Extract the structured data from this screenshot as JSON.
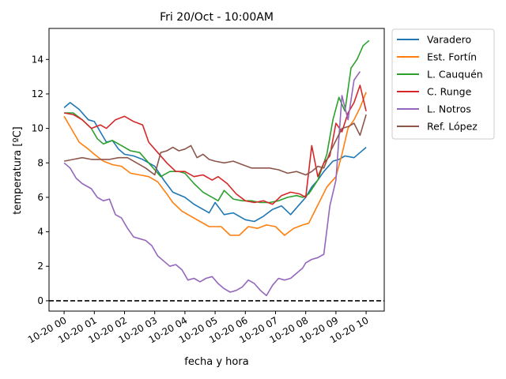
{
  "chart_data": {
    "type": "line",
    "title": "Fri 20/Oct - 10:00AM",
    "xlabel": "fecha y hora",
    "ylabel": "temperatura [ºC]",
    "xlim": [
      -0.5,
      10.6
    ],
    "ylim": [
      -0.6,
      15.8
    ],
    "x_ticks": [
      0,
      1,
      2,
      3,
      4,
      5,
      6,
      7,
      8,
      9,
      10
    ],
    "x_tick_labels": [
      "10-20 00",
      "10-20 01",
      "10-20 02",
      "10-20 03",
      "10-20 04",
      "10-20 05",
      "10-20 06",
      "10-20 07",
      "10-20 08",
      "10-20 09",
      "10-20 10"
    ],
    "y_ticks": [
      0,
      2,
      4,
      6,
      8,
      10,
      12,
      14
    ],
    "y_tick_labels": [
      "0",
      "2",
      "4",
      "6",
      "8",
      "10",
      "12",
      "14"
    ],
    "reference_line": {
      "y": 0,
      "style": "dashed",
      "color": "#000000"
    },
    "legend_position": "outside-right-top",
    "grid": false,
    "series": [
      {
        "name": "Varadero",
        "color": "#1f77b4",
        "x": [
          0,
          0.2,
          0.5,
          0.8,
          1.0,
          1.2,
          1.4,
          1.6,
          1.8,
          2.0,
          2.3,
          2.6,
          3.0,
          3.3,
          3.6,
          4.0,
          4.3,
          4.6,
          4.8,
          5.0,
          5.3,
          5.6,
          6.0,
          6.3,
          6.6,
          6.9,
          7.2,
          7.5,
          7.8,
          8.0,
          8.2,
          8.4,
          8.6,
          8.9,
          9.1,
          9.3,
          9.6,
          9.8,
          10.0
        ],
        "y": [
          11.2,
          11.5,
          11.1,
          10.5,
          10.4,
          9.8,
          9.2,
          9.3,
          8.8,
          8.5,
          8.4,
          8.2,
          7.8,
          7.0,
          6.3,
          6.0,
          5.6,
          5.3,
          5.1,
          5.7,
          5.0,
          5.1,
          4.7,
          4.6,
          4.9,
          5.3,
          5.5,
          5.0,
          5.6,
          6.0,
          6.6,
          7.0,
          7.5,
          8.1,
          8.2,
          8.4,
          8.3,
          8.6,
          8.9
        ]
      },
      {
        "name": "Est. Fortín",
        "color": "#ff7f0e",
        "x": [
          0,
          0.2,
          0.5,
          0.8,
          1.0,
          1.3,
          1.6,
          1.9,
          2.2,
          2.5,
          2.8,
          3.1,
          3.4,
          3.6,
          3.9,
          4.2,
          4.5,
          4.8,
          5.0,
          5.2,
          5.5,
          5.8,
          6.1,
          6.4,
          6.7,
          7.0,
          7.3,
          7.6,
          7.9,
          8.1,
          8.3,
          8.5,
          8.7,
          9.0,
          9.2,
          9.4,
          9.6,
          9.8,
          10.0
        ],
        "y": [
          10.7,
          10.1,
          9.2,
          8.8,
          8.5,
          8.1,
          7.9,
          7.8,
          7.4,
          7.3,
          7.2,
          6.9,
          6.2,
          5.7,
          5.2,
          4.9,
          4.6,
          4.3,
          4.3,
          4.3,
          3.8,
          3.8,
          4.3,
          4.2,
          4.4,
          4.3,
          3.8,
          4.2,
          4.4,
          4.5,
          5.2,
          5.9,
          6.6,
          7.2,
          8.5,
          10.0,
          10.5,
          11.2,
          12.1
        ]
      },
      {
        "name": "L. Cauquén",
        "color": "#2ca02c",
        "x": [
          0,
          0.3,
          0.6,
          0.9,
          1.1,
          1.3,
          1.6,
          1.9,
          2.2,
          2.5,
          2.8,
          3.0,
          3.2,
          3.5,
          3.8,
          4.0,
          4.3,
          4.6,
          4.9,
          5.1,
          5.3,
          5.6,
          5.9,
          6.2,
          6.5,
          6.8,
          7.1,
          7.4,
          7.7,
          7.9,
          8.1,
          8.4,
          8.7,
          8.9,
          9.1,
          9.3,
          9.5,
          9.7,
          9.9,
          10.1
        ],
        "y": [
          10.9,
          10.9,
          10.5,
          10.0,
          9.4,
          9.1,
          9.3,
          9.0,
          8.7,
          8.6,
          8.0,
          7.6,
          7.2,
          7.5,
          7.5,
          7.4,
          6.8,
          6.3,
          6.0,
          5.8,
          6.4,
          5.9,
          5.8,
          5.8,
          5.7,
          5.7,
          5.8,
          6.0,
          6.1,
          6.0,
          6.2,
          7.0,
          8.5,
          10.5,
          11.8,
          11.0,
          13.5,
          14.0,
          14.8,
          15.1
        ]
      },
      {
        "name": "C. Runge",
        "color": "#d62728",
        "x": [
          0,
          0.3,
          0.6,
          0.9,
          1.2,
          1.4,
          1.7,
          2.0,
          2.3,
          2.6,
          2.8,
          3.1,
          3.4,
          3.7,
          4.0,
          4.3,
          4.6,
          4.9,
          5.1,
          5.4,
          5.7,
          6.0,
          6.3,
          6.6,
          6.9,
          7.2,
          7.5,
          7.8,
          8.0,
          8.2,
          8.4,
          8.6,
          8.8,
          9.0,
          9.2,
          9.4,
          9.6,
          9.8,
          10.0
        ],
        "y": [
          10.9,
          10.8,
          10.5,
          10.0,
          10.2,
          10.0,
          10.5,
          10.7,
          10.4,
          10.2,
          9.2,
          8.6,
          8.0,
          7.5,
          7.5,
          7.2,
          7.3,
          7.0,
          7.2,
          6.8,
          6.2,
          5.8,
          5.7,
          5.8,
          5.6,
          6.1,
          6.3,
          6.2,
          6.0,
          9.0,
          7.2,
          8.0,
          8.4,
          10.3,
          9.8,
          10.9,
          11.5,
          12.5,
          11.0
        ]
      },
      {
        "name": "L. Notros",
        "color": "#9467bd",
        "x": [
          0,
          0.2,
          0.4,
          0.6,
          0.9,
          1.1,
          1.3,
          1.5,
          1.7,
          1.9,
          2.1,
          2.3,
          2.5,
          2.7,
          2.9,
          3.1,
          3.3,
          3.5,
          3.7,
          3.9,
          4.1,
          4.3,
          4.5,
          4.7,
          4.9,
          5.1,
          5.3,
          5.5,
          5.7,
          5.9,
          6.1,
          6.3,
          6.5,
          6.7,
          6.9,
          7.1,
          7.3,
          7.5,
          7.7,
          7.9,
          8.0,
          8.2,
          8.4,
          8.6,
          8.8,
          9.0,
          9.2,
          9.4,
          9.6,
          9.8
        ],
        "y": [
          8.0,
          7.7,
          7.1,
          6.8,
          6.5,
          6.0,
          5.8,
          5.9,
          5.0,
          4.8,
          4.2,
          3.7,
          3.6,
          3.5,
          3.2,
          2.6,
          2.3,
          2.0,
          2.1,
          1.8,
          1.2,
          1.3,
          1.1,
          1.3,
          1.4,
          1.0,
          0.7,
          0.5,
          0.6,
          0.8,
          1.2,
          1.0,
          0.6,
          0.3,
          0.9,
          1.3,
          1.2,
          1.3,
          1.6,
          1.9,
          2.2,
          2.4,
          2.5,
          2.7,
          5.5,
          7.0,
          11.9,
          10.5,
          12.8,
          13.3
        ]
      },
      {
        "name": "Ref. López",
        "color": "#8c564b",
        "x": [
          0,
          0.3,
          0.6,
          0.9,
          1.2,
          1.5,
          1.8,
          2.1,
          2.4,
          2.7,
          3.0,
          3.2,
          3.4,
          3.6,
          3.8,
          4.0,
          4.2,
          4.4,
          4.6,
          4.8,
          5.0,
          5.3,
          5.6,
          5.9,
          6.2,
          6.5,
          6.8,
          7.1,
          7.4,
          7.7,
          8.0,
          8.2,
          8.4,
          8.6,
          8.8,
          9.0,
          9.2,
          9.4,
          9.6,
          9.8,
          10.0
        ],
        "y": [
          8.1,
          8.2,
          8.3,
          8.2,
          8.2,
          8.2,
          8.3,
          8.3,
          8.0,
          7.7,
          7.3,
          8.6,
          8.7,
          8.9,
          8.7,
          8.8,
          9.0,
          8.3,
          8.5,
          8.2,
          8.1,
          8.0,
          8.1,
          7.9,
          7.7,
          7.7,
          7.7,
          7.6,
          7.4,
          7.5,
          7.3,
          7.5,
          7.8,
          7.7,
          8.6,
          9.3,
          10.0,
          10.1,
          10.3,
          9.6,
          10.8
        ]
      }
    ]
  }
}
